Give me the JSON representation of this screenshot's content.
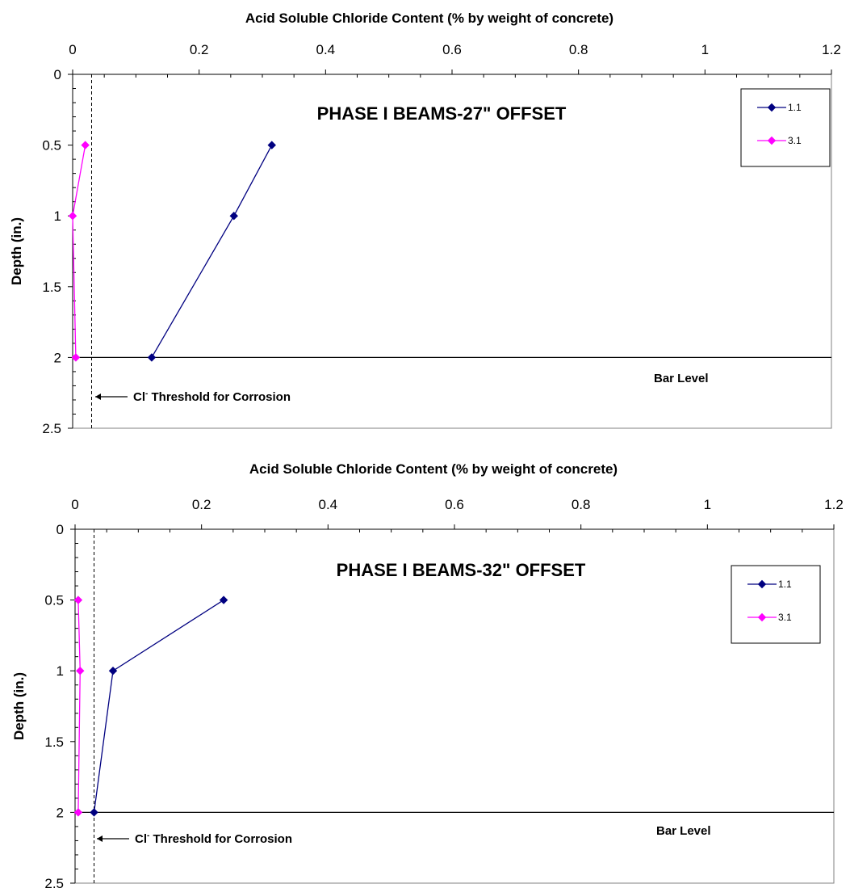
{
  "chart_data": [
    {
      "type": "line",
      "title": "PHASE I BEAMS-27\" OFFSET",
      "xlabel": "Acid Soluble Chloride Content (% by weight of concrete)",
      "ylabel": "Depth (in.)",
      "xlim": [
        0,
        1.2
      ],
      "ylim": [
        0,
        2.5
      ],
      "x_axis_position": "top",
      "y_axis_inverted": true,
      "x_ticks": [
        "0",
        "0.2",
        "0.4",
        "0.6",
        "0.8",
        "1",
        "1.2"
      ],
      "y_ticks": [
        "0",
        "0.5",
        "1",
        "1.5",
        "2",
        "2.5"
      ],
      "grid": false,
      "legend_position": "top-right",
      "series": [
        {
          "name": "1.1",
          "color": "#000080",
          "marker": "diamond",
          "points": [
            [
              0.315,
              0.5
            ],
            [
              0.255,
              1.0
            ],
            [
              0.125,
              2.0
            ]
          ]
        },
        {
          "name": "3.1",
          "color": "#ff00ff",
          "marker": "diamond",
          "points": [
            [
              0.02,
              0.5
            ],
            [
              0.0,
              1.0
            ],
            [
              0.005,
              2.0
            ]
          ]
        }
      ],
      "threshold": {
        "x": 0.03,
        "style": "dashed"
      },
      "threshold_label_prefix": "Cl",
      "threshold_label_sup": "-",
      "threshold_label_rest": " Threshold for Corrosion",
      "bar_level": {
        "y": 2.0,
        "label": "Bar Level"
      }
    },
    {
      "type": "line",
      "title": "PHASE I BEAMS-32\" OFFSET",
      "xlabel": "Acid Soluble Chloride Content (% by weight of concrete)",
      "ylabel": "Depth (in.)",
      "xlim": [
        0,
        1.2
      ],
      "ylim": [
        0,
        2.5
      ],
      "x_axis_position": "top",
      "y_axis_inverted": true,
      "x_ticks": [
        "0",
        "0.2",
        "0.4",
        "0.6",
        "0.8",
        "1",
        "1.2"
      ],
      "y_ticks": [
        "0",
        "0.5",
        "1",
        "1.5",
        "2",
        "2.5"
      ],
      "grid": false,
      "legend_position": "top-right",
      "series": [
        {
          "name": "1.1",
          "color": "#000080",
          "marker": "diamond",
          "points": [
            [
              0.235,
              0.5
            ],
            [
              0.06,
              1.0
            ],
            [
              0.03,
              2.0
            ]
          ]
        },
        {
          "name": "3.1",
          "color": "#ff00ff",
          "marker": "diamond",
          "points": [
            [
              0.005,
              0.5
            ],
            [
              0.008,
              1.0
            ],
            [
              0.005,
              2.0
            ]
          ]
        }
      ],
      "threshold": {
        "x": 0.03,
        "style": "dashed"
      },
      "threshold_label_prefix": "Cl",
      "threshold_label_sup": "-",
      "threshold_label_rest": " Threshold for Corrosion",
      "bar_level": {
        "y": 2.0,
        "label": "Bar Level"
      }
    }
  ]
}
